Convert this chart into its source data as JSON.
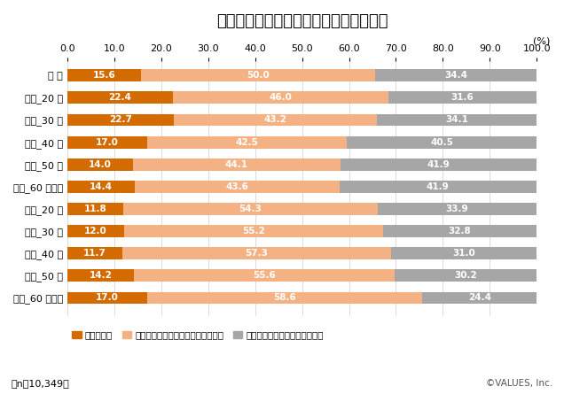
{
  "title": "消費税増税に向けて対策を考えているか",
  "categories": [
    "全 体",
    "男性_20 代",
    "男性_30 代",
    "男性_40 代",
    "男性_50 代",
    "男性_60 歳以上",
    "女性_20 代",
    "女性_30 代",
    "女性_40 代",
    "女性_50 代",
    "女性_60 歳以上"
  ],
  "s1_values": [
    15.6,
    22.4,
    22.7,
    17.0,
    14.0,
    14.4,
    11.8,
    12.0,
    11.7,
    14.2,
    17.0
  ],
  "s2_values": [
    50.0,
    46.0,
    43.2,
    42.5,
    44.1,
    43.6,
    54.3,
    55.2,
    57.3,
    55.6,
    58.6
  ],
  "s3_values": [
    34.4,
    31.6,
    34.1,
    40.5,
    41.9,
    41.9,
    33.9,
    32.8,
    31.0,
    30.2,
    24.4
  ],
  "s1_color": "#d36b00",
  "s2_color": "#f4b183",
  "s3_color": "#a6a6a6",
  "s1_label": "考えている",
  "s2_label": "考えていないが、今後考えるつもり",
  "s3_label": "考えていない、今後も考えない",
  "pct_label": "(%)",
  "note": "（n＝10,349）",
  "copyright": "©VALUES, Inc.",
  "xlim": [
    0,
    100
  ],
  "xticks": [
    0.0,
    10.0,
    20.0,
    30.0,
    40.0,
    50.0,
    60.0,
    70.0,
    80.0,
    90.0,
    100.0
  ],
  "bg_color": "#ffffff",
  "title_fontsize": 13,
  "tick_fontsize": 8,
  "bar_label_fontsize": 7.5,
  "legend_fontsize": 7.5,
  "note_fontsize": 8,
  "bar_height": 0.55
}
